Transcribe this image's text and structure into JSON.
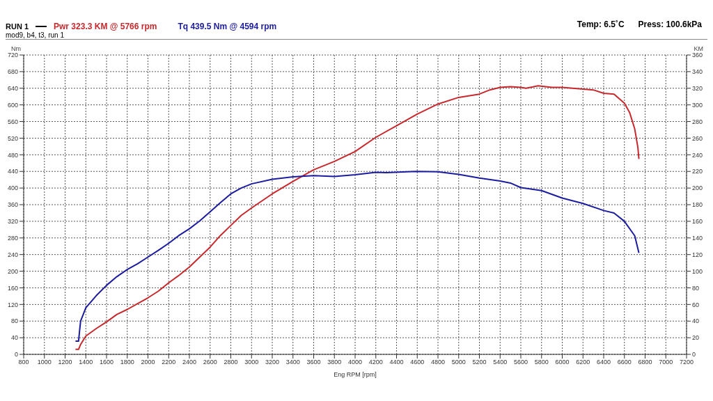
{
  "chart_data": {
    "type": "line",
    "title": "RUN 1",
    "subtitle": "mod9, b4, t3, run 1",
    "xlabel": "Eng RPM [rpm]",
    "ylabel": "Nm",
    "y2label": "KM",
    "annotations": [
      "Temp: 6.5˚C",
      "Press: 100.6kPa"
    ],
    "series": [
      {
        "name": "Pwr  323.3 KM @ 5766 rpm",
        "color": "#c8282c",
        "axis": "y2",
        "x": [
          1300,
          1330,
          1350,
          1400,
          1500,
          1600,
          1700,
          1800,
          1900,
          2000,
          2100,
          2200,
          2300,
          2400,
          2500,
          2600,
          2700,
          2800,
          2900,
          3000,
          3200,
          3400,
          3600,
          3800,
          4000,
          4200,
          4400,
          4600,
          4800,
          5000,
          5200,
          5300,
          5400,
          5500,
          5600,
          5650,
          5766,
          5900,
          6000,
          6200,
          6300,
          6400,
          6500,
          6600,
          6650,
          6700,
          6730,
          6740
        ],
        "values": [
          6,
          6,
          12,
          22,
          31,
          39,
          48,
          54,
          61,
          68,
          76,
          86,
          95,
          105,
          117,
          129,
          143,
          155,
          167,
          176,
          193,
          208,
          222,
          232,
          244,
          261,
          275,
          289,
          301,
          309,
          313,
          318,
          321,
          322,
          321,
          320,
          323,
          321,
          321,
          319,
          318,
          314,
          313,
          302,
          291,
          271,
          249,
          235
        ]
      },
      {
        "name": "Tq 439.5 Nm @ 4594 rpm",
        "color": "#1c1ca0",
        "x": [
          1300,
          1330,
          1340,
          1350,
          1400,
          1500,
          1600,
          1700,
          1800,
          1900,
          2000,
          2100,
          2200,
          2300,
          2400,
          2500,
          2600,
          2700,
          2800,
          2900,
          3000,
          3200,
          3400,
          3600,
          3800,
          4000,
          4200,
          4300,
          4500,
          4594,
          4800,
          5000,
          5200,
          5400,
          5500,
          5600,
          5800,
          6000,
          6200,
          6400,
          6500,
          6600,
          6700,
          6740
        ],
        "values": [
          32,
          32,
          57,
          80,
          112,
          141,
          166,
          187,
          204,
          218,
          234,
          250,
          267,
          286,
          302,
          321,
          343,
          365,
          386,
          400,
          410,
          421,
          427,
          430,
          428,
          432,
          438,
          437,
          439,
          440,
          439,
          433,
          424,
          417,
          412,
          401,
          394,
          376,
          363,
          346,
          340,
          320,
          285,
          244
        ]
      }
    ],
    "xlim": [
      800,
      7200
    ],
    "xticks": [
      800,
      1000,
      1200,
      1400,
      1600,
      1800,
      2000,
      2200,
      2400,
      2600,
      2800,
      3000,
      3200,
      3400,
      3600,
      3800,
      4000,
      4200,
      4400,
      4600,
      4800,
      5000,
      5200,
      5400,
      5600,
      5800,
      6000,
      6200,
      6400,
      6600,
      6800,
      7000,
      7200
    ],
    "ylim": [
      0,
      720
    ],
    "yticks": [
      0,
      40,
      80,
      120,
      160,
      200,
      240,
      280,
      320,
      360,
      400,
      440,
      480,
      520,
      560,
      600,
      640,
      680,
      720
    ],
    "y2lim": [
      0,
      360
    ],
    "y2ticks": [
      0,
      20,
      40,
      60,
      80,
      100,
      120,
      140,
      160,
      180,
      200,
      220,
      240,
      260,
      280,
      300,
      320,
      340,
      360
    ],
    "grid": true,
    "legend": "top left",
    "marker": "none",
    "line_style": "solid"
  }
}
